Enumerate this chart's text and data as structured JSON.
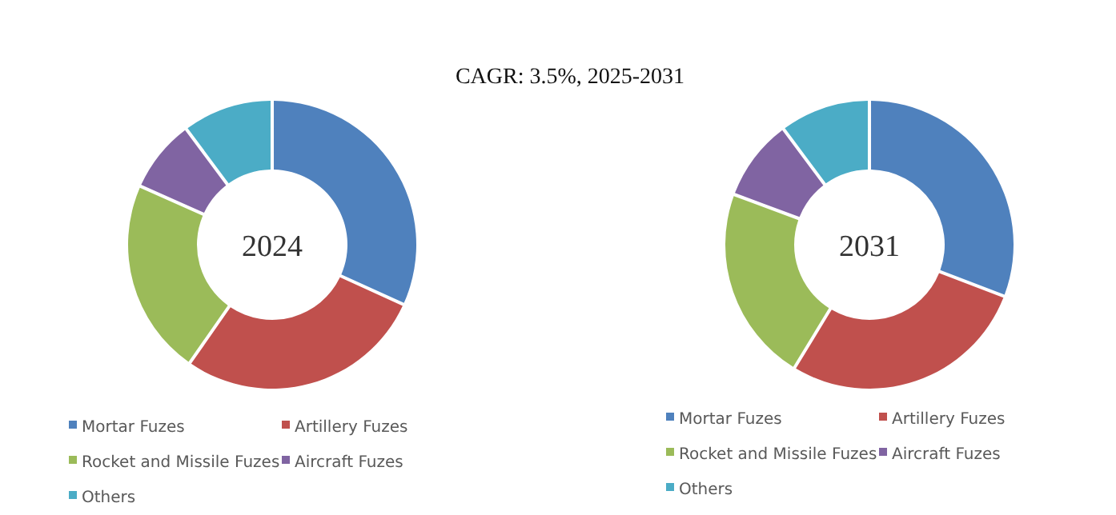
{
  "chart_data": [
    {
      "type": "donut",
      "title": "2024",
      "subtitle": "CAGR: 3.5%, 2025-2031",
      "categories": [
        "Mortar Fuzes",
        "Artillery Fuzes",
        "Rocket and Missile Fuzes",
        "Aircraft Fuzes",
        "Others"
      ],
      "values": [
        32,
        28,
        22,
        8,
        10
      ],
      "colors": [
        "#4f81bd",
        "#c0504d",
        "#9bbb59",
        "#8064a2",
        "#4bacc6"
      ],
      "legend": "bottom"
    },
    {
      "type": "donut",
      "title": "2031",
      "categories": [
        "Mortar Fuzes",
        "Artillery Fuzes",
        "Rocket and Missile Fuzes",
        "Aircraft Fuzes",
        "Others"
      ],
      "values": [
        31,
        28,
        22,
        9,
        10
      ],
      "colors": [
        "#4f81bd",
        "#c0504d",
        "#9bbb59",
        "#8064a2",
        "#4bacc6"
      ],
      "legend": "bottom"
    }
  ]
}
